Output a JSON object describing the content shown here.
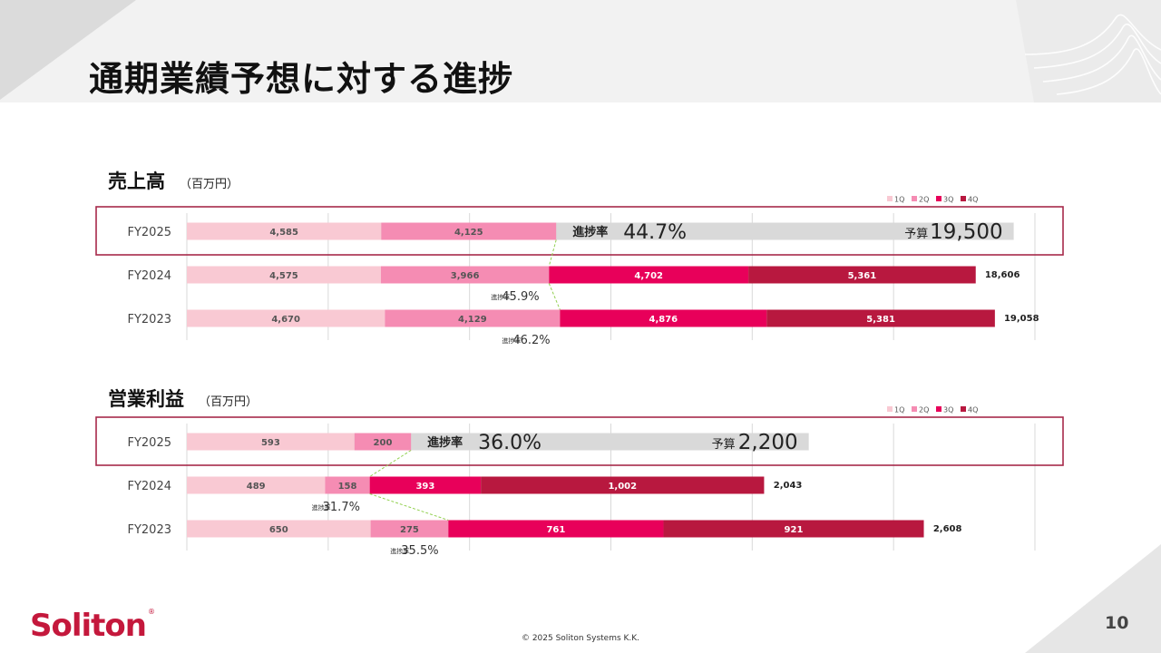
{
  "page": {
    "title": "通期業績予想に対する進捗",
    "copyright": "© 2025 Soliton Systems K.K.",
    "page_number": "10",
    "logo_text": "Soliton",
    "logo_mark": "®"
  },
  "colors": {
    "q1": "#f9c9d3",
    "q2": "#f58cb3",
    "q3": "#e8005a",
    "q4": "#b8183f",
    "remaining": "#d9d9d9",
    "highlight": "#a6294a",
    "guide": "#92d050"
  },
  "chart_data": [
    {
      "type": "bar",
      "stacked": true,
      "orientation": "horizontal",
      "title": "売上高",
      "unit": "（百万円）",
      "legend": [
        "1Q",
        "2Q",
        "3Q",
        "4Q"
      ],
      "legend_position": "top-right",
      "xlim": [
        0,
        20000
      ],
      "grid": true,
      "rows": [
        {
          "label": "FY2025",
          "values": [
            4585,
            4125
          ],
          "value_labels": [
            "4,585",
            "4,125"
          ],
          "budget": 19500,
          "budget_label": "予算",
          "budget_text": "19,500",
          "progress_label": "進捗率",
          "progress_text": "44.7%"
        },
        {
          "label": "FY2024",
          "values": [
            4575,
            3966,
            4702,
            5361
          ],
          "value_labels": [
            "4,575",
            "3,966",
            "4,702",
            "5,361"
          ],
          "total": 18606,
          "total_text": "18,606",
          "progress_label": "進捗率",
          "progress_text": "45.9%"
        },
        {
          "label": "FY2023",
          "values": [
            4670,
            4129,
            4876,
            5381
          ],
          "value_labels": [
            "4,670",
            "4,129",
            "4,876",
            "5,381"
          ],
          "total": 19058,
          "total_text": "19,058",
          "progress_label": "進捗率",
          "progress_text": "46.2%"
        }
      ]
    },
    {
      "type": "bar",
      "stacked": true,
      "orientation": "horizontal",
      "title": "営業利益",
      "unit": "（百万円）",
      "legend": [
        "1Q",
        "2Q",
        "3Q",
        "4Q"
      ],
      "legend_position": "top-right",
      "xlim": [
        0,
        3000
      ],
      "grid": true,
      "rows": [
        {
          "label": "FY2025",
          "values": [
            593,
            200
          ],
          "value_labels": [
            "593",
            "200"
          ],
          "budget": 2200,
          "budget_label": "予算",
          "budget_text": "2,200",
          "progress_label": "進捗率",
          "progress_text": "36.0%"
        },
        {
          "label": "FY2024",
          "values": [
            489,
            158,
            393,
            1002
          ],
          "value_labels": [
            "489",
            "158",
            "393",
            "1,002"
          ],
          "total": 2043,
          "total_text": "2,043",
          "progress_label": "進捗率",
          "progress_text": "31.7%"
        },
        {
          "label": "FY2023",
          "values": [
            650,
            275,
            761,
            921
          ],
          "value_labels": [
            "650",
            "275",
            "761",
            "921"
          ],
          "total": 2608,
          "total_text": "2,608",
          "progress_label": "進捗率",
          "progress_text": "35.5%"
        }
      ]
    }
  ]
}
